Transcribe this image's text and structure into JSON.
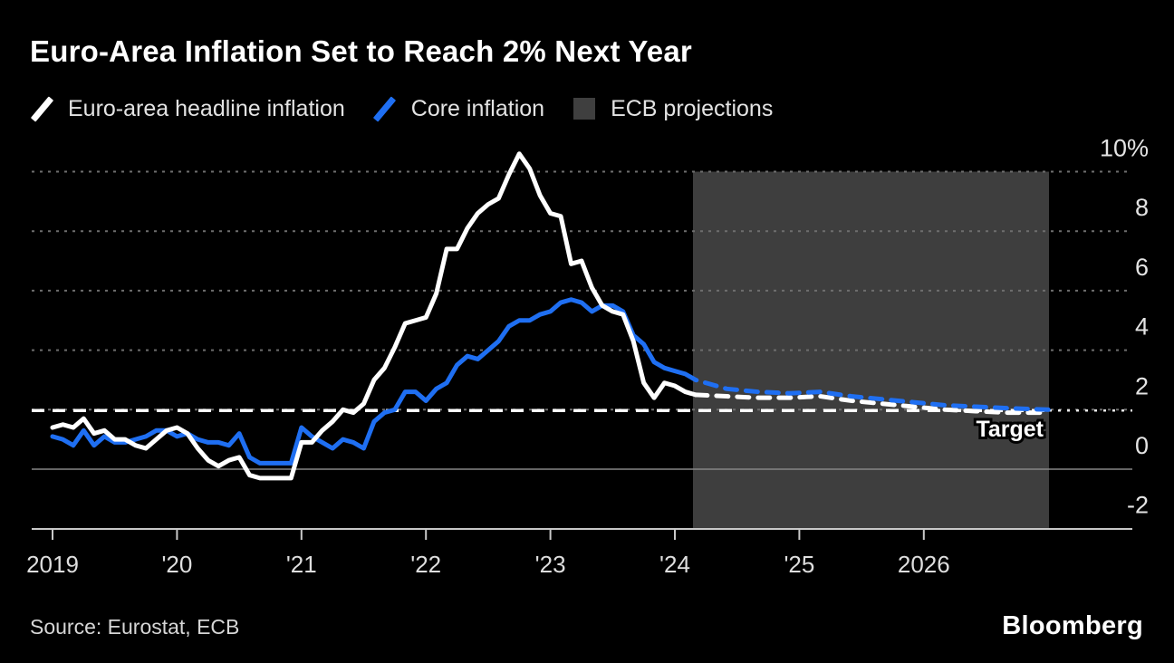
{
  "footer": {
    "source": "Source: Eurostat, ECB",
    "brand": "Bloomberg"
  },
  "chart_data": {
    "type": "line",
    "title": "Euro-Area Inflation Set to Reach 2% Next Year",
    "unit": "percent, year-over-year",
    "background": "#000000",
    "y_axis": {
      "ticks": [
        {
          "label": "10%",
          "value": 10
        },
        {
          "label": "8",
          "value": 8
        },
        {
          "label": "6",
          "value": 6
        },
        {
          "label": "4",
          "value": 4
        },
        {
          "label": "2",
          "value": 2
        },
        {
          "label": "0",
          "value": 0
        },
        {
          "label": "-2",
          "value": -2
        }
      ],
      "range": [
        -2,
        11
      ],
      "gridlines": "dotted",
      "zero_line": "solid"
    },
    "x_axis": {
      "ticks": [
        {
          "label": "2019",
          "year": 2019
        },
        {
          "label": "'20",
          "year": 2020
        },
        {
          "label": "'21",
          "year": 2021
        },
        {
          "label": "'22",
          "year": 2022
        },
        {
          "label": "'23",
          "year": 2023
        },
        {
          "label": "'24",
          "year": 2024
        },
        {
          "label": "'25",
          "year": 2025
        },
        {
          "label": "2026",
          "year": 2026
        }
      ],
      "range": [
        "2019-01",
        "2027-01"
      ]
    },
    "legend": [
      {
        "label": "Euro-area headline inflation",
        "marker": "slash",
        "color": "#ffffff"
      },
      {
        "label": "Core inflation",
        "marker": "slash",
        "color": "#1f6ff2"
      },
      {
        "label": "ECB projections",
        "marker": "square",
        "color": "#3f3f3f"
      }
    ],
    "target_line": {
      "label": "Target",
      "value": 2,
      "color": "#ffffff",
      "style": "dashed"
    },
    "projection_region": {
      "label": "ECB projections",
      "start": "2024-03",
      "end": "2026-12",
      "color": "#3e3e3e"
    },
    "series": [
      {
        "name": "Core inflation",
        "color": "#1f6ff2",
        "style": "solid",
        "start": "2019-01",
        "frequency": "monthly",
        "values": [
          1.1,
          1.0,
          0.8,
          1.3,
          0.8,
          1.1,
          0.9,
          0.9,
          1.0,
          1.1,
          1.3,
          1.3,
          1.1,
          1.2,
          1.0,
          0.9,
          0.9,
          0.8,
          1.2,
          0.4,
          0.2,
          0.2,
          0.2,
          0.2,
          1.4,
          1.1,
          0.9,
          0.7,
          1.0,
          0.9,
          0.7,
          1.6,
          1.9,
          2.0,
          2.6,
          2.6,
          2.3,
          2.7,
          2.9,
          3.5,
          3.8,
          3.7,
          4.0,
          4.3,
          4.8,
          5.0,
          5.0,
          5.2,
          5.3,
          5.6,
          5.7,
          5.6,
          5.3,
          5.5,
          5.5,
          5.3,
          4.5,
          4.2,
          3.6,
          3.4,
          3.3,
          3.2,
          3.0
        ]
      },
      {
        "name": "Euro-area headline inflation",
        "color": "#ffffff",
        "style": "solid",
        "start": "2019-01",
        "frequency": "monthly",
        "values": [
          1.4,
          1.5,
          1.4,
          1.7,
          1.2,
          1.3,
          1.0,
          1.0,
          0.8,
          0.7,
          1.0,
          1.3,
          1.4,
          1.2,
          0.7,
          0.3,
          0.1,
          0.3,
          0.4,
          -0.2,
          -0.3,
          -0.3,
          -0.3,
          -0.3,
          0.9,
          0.9,
          1.3,
          1.6,
          2.0,
          1.9,
          2.2,
          3.0,
          3.4,
          4.1,
          4.9,
          5.0,
          5.1,
          5.9,
          7.4,
          7.4,
          8.1,
          8.6,
          8.9,
          9.1,
          9.9,
          10.6,
          10.1,
          9.2,
          8.6,
          8.5,
          6.9,
          7.0,
          6.1,
          5.5,
          5.3,
          5.2,
          4.3,
          2.9,
          2.4,
          2.9,
          2.8,
          2.6,
          2.5
        ]
      },
      {
        "name": "Euro-area headline inflation (ECB projection)",
        "color": "#ffffff",
        "style": "dashed",
        "month_index": [
          62,
          65,
          68,
          71,
          74,
          77,
          80,
          83,
          86,
          89,
          92,
          96
        ],
        "values": [
          2.5,
          2.45,
          2.4,
          2.4,
          2.45,
          2.3,
          2.2,
          2.1,
          2.0,
          1.95,
          1.9,
          1.9
        ]
      },
      {
        "name": "Core inflation (ECB projection)",
        "color": "#1f6ff2",
        "style": "dashed",
        "month_index": [
          62,
          65,
          68,
          71,
          74,
          77,
          80,
          83,
          86,
          89,
          92,
          96
        ],
        "values": [
          3.0,
          2.7,
          2.6,
          2.55,
          2.6,
          2.45,
          2.35,
          2.25,
          2.15,
          2.1,
          2.05,
          2.0
        ]
      }
    ]
  }
}
